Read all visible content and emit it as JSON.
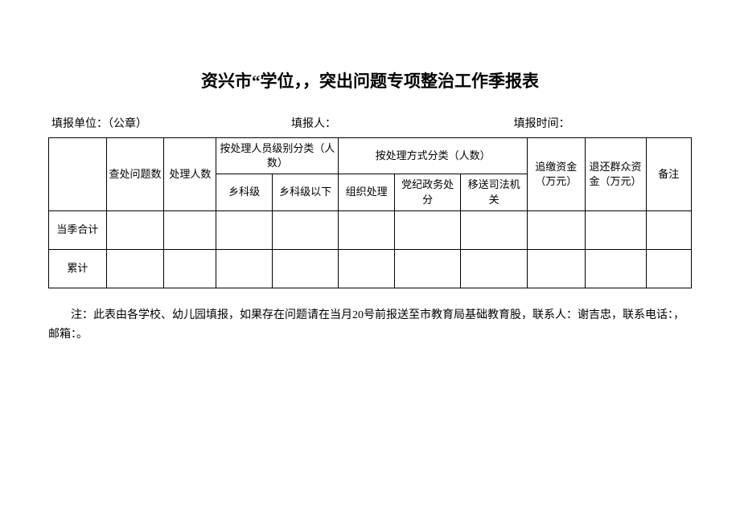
{
  "title": "资兴市“学位，，突出问题专项整治工作季报表",
  "info": {
    "unit_label": "填报单位：（公章）",
    "reporter_label": "填报人：",
    "time_label": "填报时间："
  },
  "table": {
    "headers": {
      "blank": "",
      "col1": "查处问题数",
      "col2": "处理人数",
      "group1": "按处理人员级别分类（人数）",
      "group2": "按处理方式分类（人数）",
      "col8": "追缴资金（万元）",
      "col9": "退还群众资金（万元）",
      "col10": "备注",
      "col3": "乡科级",
      "col4": "乡科级以下",
      "col5": "组织处理",
      "col6": "党纪政务处分",
      "col7": "移送司法机关"
    },
    "rows": {
      "r1_label": "当季合计",
      "r2_label": "累计"
    }
  },
  "note": "注：此表由各学校、幼儿园填报，如果存在问题请在当月20号前报送至市教育局基础教育股，联系人：谢吉忠，联系电话：，邮箱：。"
}
